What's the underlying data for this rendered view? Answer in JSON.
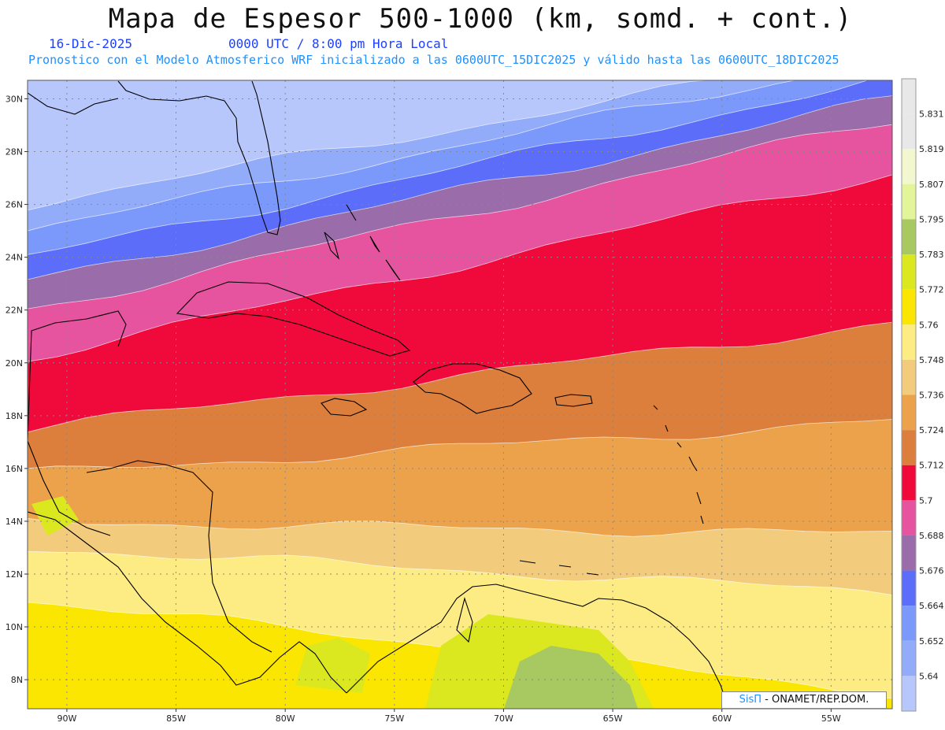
{
  "header": {
    "title": "Mapa de Espesor 500-1000 (km, somd. + cont.)",
    "date": "16-Dic-2025",
    "time": "0000 UTC / 8:00 pm Hora Local",
    "forecast": "Pronostico con el Modelo Atmosferico WRF inicializado a las 0600UTC_15DIC2025 y válido hasta las  0600UTC_18DIC2025"
  },
  "axes": {
    "lat_labels": [
      "30N",
      "28N",
      "26N",
      "24N",
      "22N",
      "20N",
      "18N",
      "16N",
      "14N",
      "12N",
      "10N",
      "8N"
    ],
    "lat_values": [
      30,
      28,
      26,
      24,
      22,
      20,
      18,
      16,
      14,
      12,
      10,
      8
    ],
    "lon_labels": [
      "90W",
      "85W",
      "80W",
      "75W",
      "70W",
      "65W",
      "60W",
      "55W"
    ],
    "lon_values": [
      -90,
      -85,
      -80,
      -75,
      -70,
      -65,
      -60,
      -55
    ],
    "lon_range": [
      -91.8,
      -52.2
    ],
    "lat_range": [
      6.9,
      30.7
    ]
  },
  "colorbar": {
    "labels": [
      "5.831",
      "5.819",
      "5.807",
      "5.795",
      "5.783",
      "5.772",
      "5.76",
      "5.748",
      "5.736",
      "5.724",
      "5.712",
      "5.7",
      "5.688",
      "5.676",
      "5.664",
      "5.652",
      "5.64"
    ],
    "colors": [
      "#e8e8e8",
      "#f2f7cf",
      "#e3f49a",
      "#a8c862",
      "#dbe81f",
      "#fae600",
      "#fdec83",
      "#f2cc7c",
      "#eba24a",
      "#dd7f3c",
      "#f0093b",
      "#e6539e",
      "#9a6ca9",
      "#5c6ef9",
      "#7b98fb",
      "#93acf9",
      "#b7c6fb"
    ]
  },
  "contour_bands": [
    {
      "color": "#b7c6fb",
      "left": 26.0,
      "right": 30.8
    },
    {
      "color": "#93acf9",
      "left": 25.0,
      "right": 30.8
    },
    {
      "color": "#7b98fb",
      "left": 24.0,
      "right": 30.5
    },
    {
      "color": "#5c6ef9",
      "left": 23.0,
      "right": 29.8
    },
    {
      "color": "#9a6ca9",
      "left": 22.1,
      "right": 29.0
    },
    {
      "color": "#e6539e",
      "left": 21.0,
      "right": 28.2
    },
    {
      "color": "#f0093b",
      "left": 19.2,
      "right": 26.2
    },
    {
      "color": "#dd7f3c",
      "left": 16.5,
      "right": 20.5
    },
    {
      "color": "#eba24a",
      "left": 14.8,
      "right": 16.8
    },
    {
      "color": "#f2cc7c",
      "left": 13.0,
      "right": 12.5
    },
    {
      "color": "#fdec83",
      "left": 12.0,
      "right": 10.3
    },
    {
      "color": "#fae600",
      "left": 10.0,
      "right": 6.5
    }
  ],
  "credit": {
    "brand": "SisΠ",
    "text": "- ONAMET/REP.DOM."
  }
}
